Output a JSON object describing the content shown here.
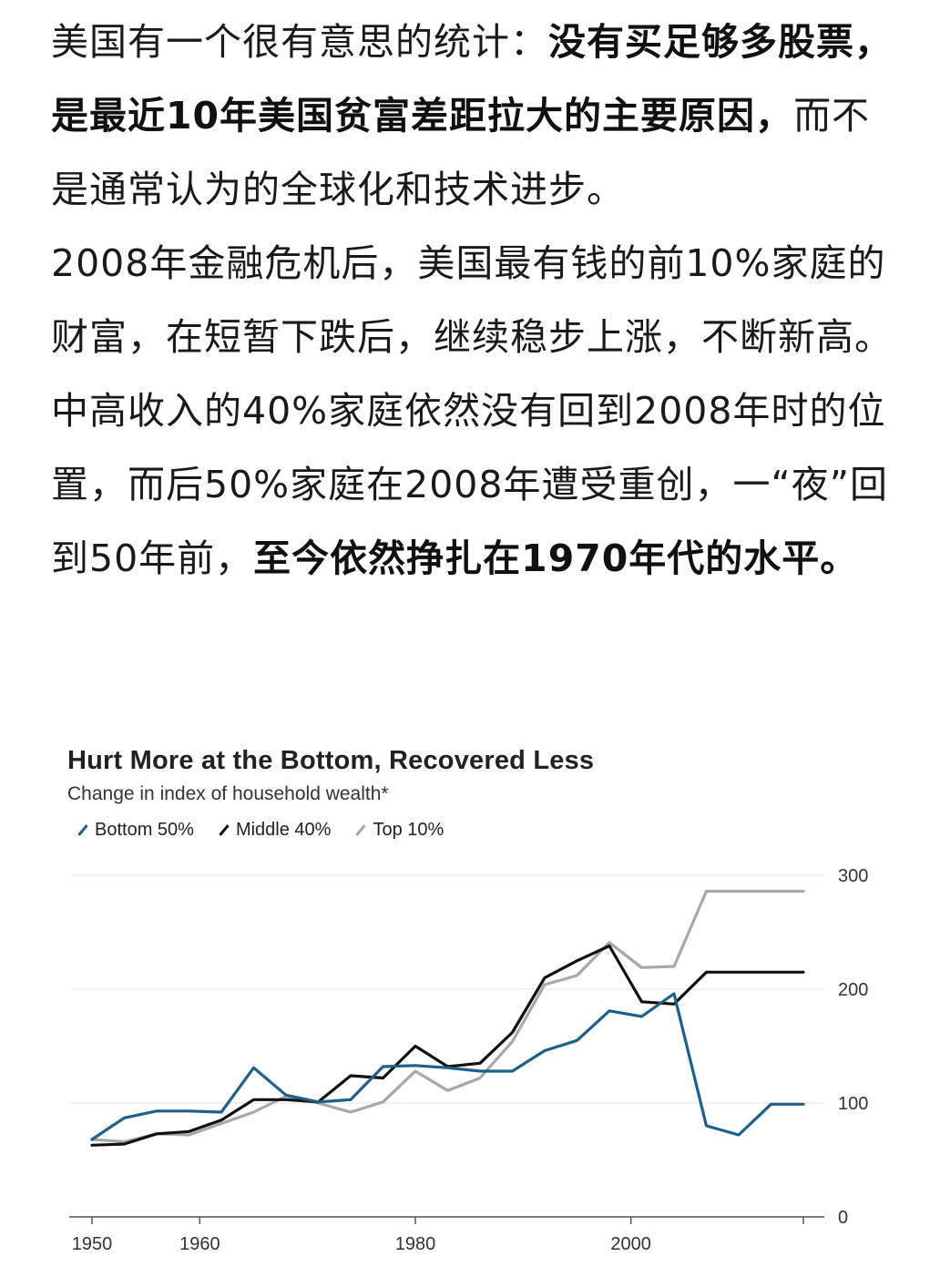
{
  "post": {
    "paragraph1": [
      {
        "text": "美国有一个很有意思的统计：",
        "bold": false
      },
      {
        "text": "没有买足够多股票，是最近10年美国贫富差距拉大的主要原因，",
        "bold": true
      },
      {
        "text": "而不是通常认为的全球化和技术进步。",
        "bold": false
      }
    ],
    "paragraph2": [
      {
        "text": "2008年金融危机后，美国最有钱的前10%家庭的财富，在短暂下跌后，继续稳步上涨，不断新高。中高收入的40%家庭依然没有回到2008年时的位置，而后50%家庭在2008年遭受重创，一“夜”回到50年前，",
        "bold": false
      },
      {
        "text": "至今依然挣扎在1970年代的水平。",
        "bold": true
      }
    ]
  },
  "chart_data": {
    "type": "line",
    "title": "Hurt More at the Bottom, Recovered Less",
    "subtitle": "Change in index of household wealth*",
    "xlabel": "",
    "ylabel": "",
    "xlim": [
      1950,
      2016
    ],
    "ylim": [
      0,
      300
    ],
    "x_ticks": [
      "1950",
      "1960",
      "1980",
      "2000"
    ],
    "x_tick_values": [
      1950,
      1960,
      1980,
      2000
    ],
    "y_ticks": [
      "0",
      "100",
      "200",
      "300"
    ],
    "y_tick_values": [
      0,
      100,
      200,
      300
    ],
    "grid": true,
    "legend_position": "top-left",
    "series": [
      {
        "name": "Bottom 50%",
        "color": "#1f5f8b",
        "x": [
          1950,
          1953,
          1956,
          1959,
          1962,
          1965,
          1968,
          1971,
          1974,
          1977,
          1980,
          1983,
          1986,
          1989,
          1992,
          1995,
          1998,
          2001,
          2004,
          2007,
          2010,
          2013,
          2016
        ],
        "values": [
          68,
          87,
          93,
          93,
          92,
          131,
          107,
          101,
          103,
          132,
          133,
          131,
          128,
          128,
          146,
          155,
          181,
          176,
          196,
          80,
          72,
          99,
          99
        ]
      },
      {
        "name": "Middle 40%",
        "color": "#111111",
        "x": [
          1950,
          1953,
          1956,
          1959,
          1962,
          1965,
          1968,
          1971,
          1974,
          1977,
          1980,
          1983,
          1986,
          1989,
          1992,
          1995,
          1998,
          2001,
          2004,
          2007,
          2010,
          2013,
          2016
        ],
        "values": [
          63,
          64,
          73,
          75,
          85,
          103,
          103,
          101,
          124,
          122,
          150,
          132,
          135,
          162,
          210,
          225,
          238,
          189,
          187,
          215,
          215,
          215,
          215
        ]
      },
      {
        "name": "Top 10%",
        "color": "#a8a8a8",
        "x": [
          1950,
          1953,
          1956,
          1959,
          1962,
          1965,
          1968,
          1971,
          1974,
          1977,
          1980,
          1983,
          1986,
          1989,
          1992,
          1995,
          1998,
          2001,
          2004,
          2007,
          2010,
          2013,
          2016
        ],
        "values": [
          68,
          66,
          73,
          72,
          82,
          92,
          106,
          100,
          92,
          101,
          128,
          111,
          122,
          154,
          204,
          212,
          241,
          219,
          220,
          286,
          286,
          286,
          286
        ]
      }
    ]
  }
}
